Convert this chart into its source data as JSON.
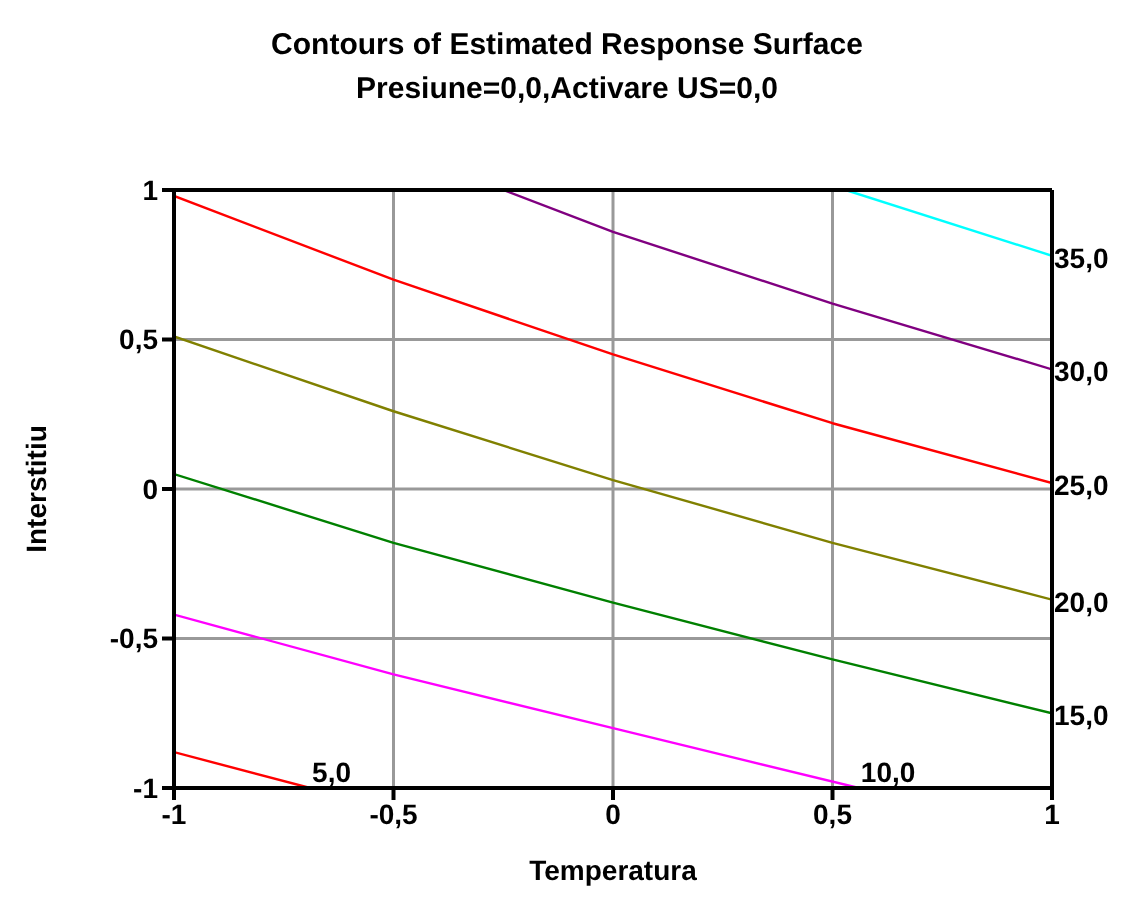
{
  "chart_data": {
    "type": "line",
    "title": "Contours of Estimated Response Surface",
    "subtitle": "Presiune=0,0,Activare US=0,0",
    "xlabel": "Temperatura",
    "ylabel": "Interstitiu",
    "xlim": [
      -1,
      1
    ],
    "ylim": [
      -1,
      1
    ],
    "xticks": [
      -1,
      {
        "value": -0.5,
        "label": "-0,5"
      },
      0,
      {
        "value": 0.5,
        "label": "0,5"
      },
      1
    ],
    "yticks": [
      -1,
      {
        "value": -0.5,
        "label": "-0,5"
      },
      0,
      {
        "value": 0.5,
        "label": "0,5"
      },
      1
    ],
    "grid": true,
    "legend": false,
    "marker": "none",
    "line_style": "solid",
    "series": [
      {
        "name": "5,0",
        "color": "#ff0000",
        "x": [
          -1,
          -0.69
        ],
        "values": [
          -0.88,
          -1
        ]
      },
      {
        "name": "10,0",
        "color": "#ff00ff",
        "x": [
          -1,
          -0.5,
          0,
          0.56
        ],
        "values": [
          -0.42,
          -0.62,
          -0.8,
          -1
        ]
      },
      {
        "name": "15,0",
        "color": "#008000",
        "x": [
          -1,
          -0.5,
          0,
          0.5,
          1
        ],
        "values": [
          0.05,
          -0.18,
          -0.38,
          -0.57,
          -0.75
        ]
      },
      {
        "name": "20,0",
        "color": "#808000",
        "x": [
          -1,
          -0.5,
          0,
          0.5,
          1
        ],
        "values": [
          0.51,
          0.26,
          0.03,
          -0.18,
          -0.37
        ]
      },
      {
        "name": "25,0",
        "color": "#ff0000",
        "x": [
          -1,
          -0.5,
          0,
          0.5,
          1
        ],
        "values": [
          0.98,
          0.7,
          0.45,
          0.22,
          0.02
        ]
      },
      {
        "name": "30,0",
        "color": "#800080",
        "x": [
          -0.25,
          0,
          0.5,
          1
        ],
        "values": [
          1,
          0.86,
          0.62,
          0.4
        ]
      },
      {
        "name": "35,0",
        "color": "#00ffff",
        "x": [
          0.53,
          1
        ],
        "values": [
          1,
          0.78
        ]
      }
    ]
  }
}
